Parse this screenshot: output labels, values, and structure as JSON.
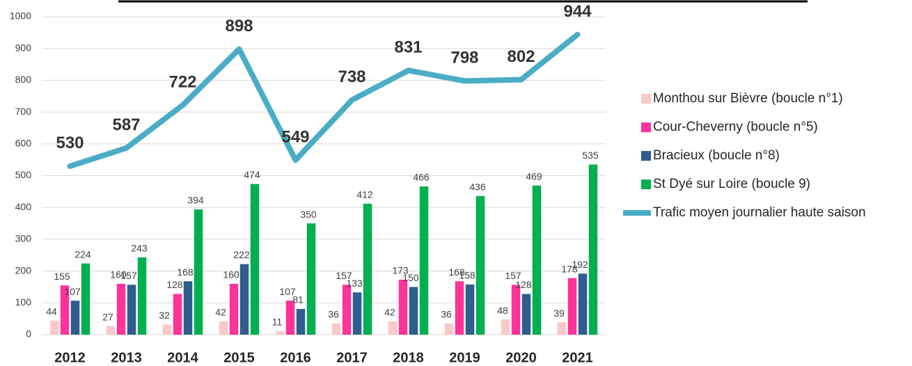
{
  "chart_data": {
    "type": "bar_line",
    "categories": [
      "2012",
      "2013",
      "2014",
      "2015",
      "2016",
      "2017",
      "2018",
      "2019",
      "2020",
      "2021"
    ],
    "series": [
      {
        "name": "Monthou sur Bièvre (boucle n°1)",
        "color": "#f9c9c8",
        "type": "bar",
        "values": [
          44,
          27,
          32,
          42,
          11,
          36,
          42,
          36,
          48,
          39
        ]
      },
      {
        "name": "Cour-Cheverny (boucle n°5)",
        "color": "#ff3399",
        "type": "bar",
        "values": [
          155,
          160,
          128,
          160,
          107,
          157,
          173,
          168,
          157,
          178
        ]
      },
      {
        "name": "Bracieux (boucle n°8)",
        "color": "#2e5d8e",
        "type": "bar",
        "values": [
          107,
          157,
          168,
          222,
          81,
          133,
          150,
          158,
          128,
          192
        ]
      },
      {
        "name": "St Dyé sur Loire (boucle 9)",
        "color": "#00b050",
        "type": "bar",
        "values": [
          224,
          243,
          394,
          474,
          350,
          412,
          466,
          436,
          469,
          535
        ]
      },
      {
        "name": "Trafic moyen journalier haute saison",
        "color": "#4bacc6",
        "type": "line",
        "values": [
          530,
          587,
          722,
          898,
          549,
          738,
          831,
          798,
          802,
          944
        ]
      }
    ],
    "ylim": [
      0,
      1000
    ],
    "yticks": [
      0,
      100,
      200,
      300,
      400,
      500,
      600,
      700,
      800,
      900,
      1000
    ],
    "grid": true,
    "legend": "right"
  }
}
